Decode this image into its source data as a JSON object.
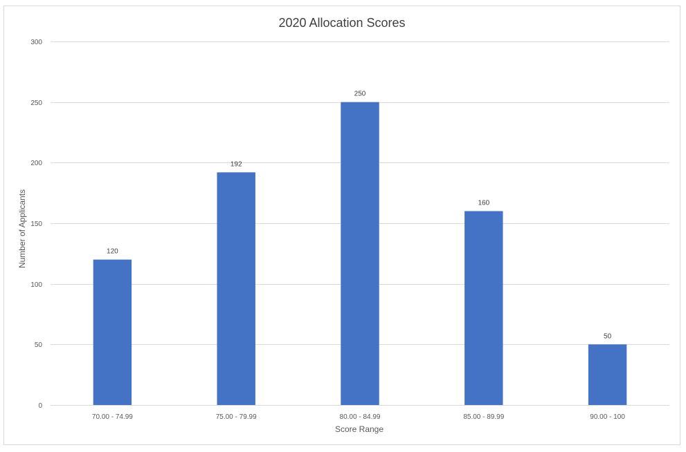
{
  "chart_data": {
    "type": "bar",
    "title": "2020 Allocation Scores",
    "xlabel": "Score Range",
    "ylabel": "Number of Applicants",
    "categories": [
      "70.00 - 74.99",
      "75.00 - 79.99",
      "80.00 - 84.99",
      "85.00 - 89.99",
      "90.00 - 100"
    ],
    "values": [
      120,
      192,
      250,
      160,
      50
    ],
    "data_labels": [
      "120",
      "192",
      "250",
      "160",
      "50"
    ],
    "ylim": [
      0,
      300
    ],
    "yticks": [
      0,
      50,
      100,
      150,
      200,
      250,
      300
    ],
    "grid": true,
    "legend": "none",
    "bar_color": "#4472C4"
  }
}
